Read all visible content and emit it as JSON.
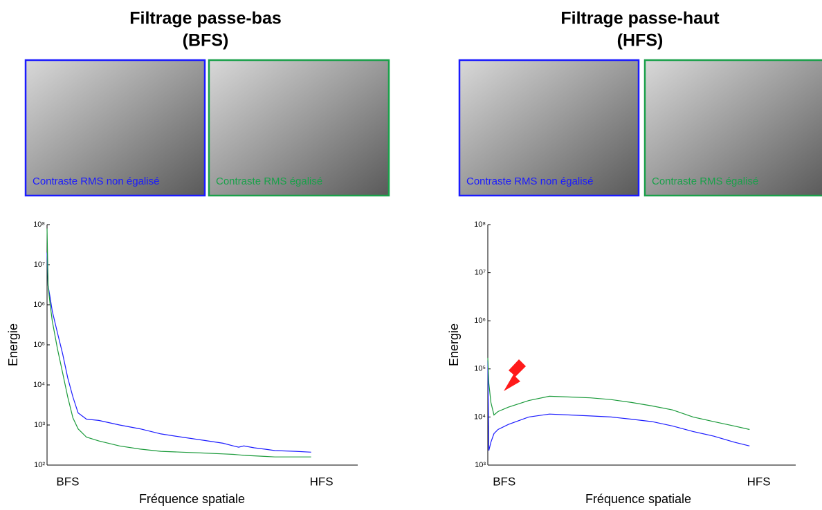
{
  "chart_data": [
    {
      "type": "line",
      "title": "Filtrage passe-bas",
      "subtitle": "(BFS)",
      "images": [
        {
          "caption": "Contraste RMS non égalisé",
          "color": "#1a1aff"
        },
        {
          "caption": "Contraste RMS égalisé",
          "color": "#1aa04a"
        }
      ],
      "xlabel": "Fréquence spatiale",
      "ylabel": "Energie",
      "xlim": [
        0,
        300
      ],
      "xticks": [
        {
          "value": 20,
          "label": "BFS"
        },
        {
          "value": 265,
          "label": "HFS"
        }
      ],
      "ylim": [
        100,
        100000000
      ],
      "log_y": true,
      "yticks": [
        {
          "value": 100,
          "label": "10²"
        },
        {
          "value": 1000,
          "label": "10³"
        },
        {
          "value": 10000,
          "label": "10⁴"
        },
        {
          "value": 100000,
          "label": "10⁵"
        },
        {
          "value": 1000000,
          "label": "10⁶"
        },
        {
          "value": 10000000,
          "label": "10⁷"
        },
        {
          "value": 100000000,
          "label": "10⁸"
        }
      ],
      "x": [
        0,
        1,
        3,
        5,
        10,
        15,
        20,
        25,
        30,
        38,
        50,
        70,
        90,
        110,
        130,
        150,
        170,
        180,
        185,
        190,
        200,
        210,
        220,
        240,
        255
      ],
      "series": [
        {
          "color": "#1a1aff",
          "values": [
            20000000,
            3000000,
            1500000,
            700000,
            200000,
            60000,
            15000,
            5000,
            2000,
            1400,
            1300,
            1000,
            800,
            600,
            500,
            420,
            350,
            300,
            280,
            300,
            270,
            250,
            230,
            220,
            210
          ]
        },
        {
          "color": "#1a9a3a",
          "values": [
            80000000,
            3000000,
            1000000,
            400000,
            80000,
            20000,
            5000,
            1500,
            800,
            500,
            400,
            300,
            250,
            220,
            210,
            200,
            190,
            185,
            180,
            175,
            170,
            165,
            160,
            160,
            160
          ]
        }
      ]
    },
    {
      "type": "line",
      "title": "Filtrage passe-haut",
      "subtitle": "(HFS)",
      "images": [
        {
          "caption": "Contraste RMS non égalisé",
          "color": "#1a1aff"
        },
        {
          "caption": "Contraste RMS égalisé",
          "color": "#1aa04a"
        }
      ],
      "xlabel": "Fréquence spatiale",
      "ylabel": "Energie",
      "xlim": [
        0,
        300
      ],
      "xticks": [
        {
          "value": 16,
          "label": "BFS"
        },
        {
          "value": 264,
          "label": "HFS"
        }
      ],
      "ylim": [
        1000,
        100000000
      ],
      "log_y": true,
      "yticks": [
        {
          "value": 1000,
          "label": "10³"
        },
        {
          "value": 10000,
          "label": "10⁴"
        },
        {
          "value": 100000,
          "label": "10⁵"
        },
        {
          "value": 1000000,
          "label": "10⁶"
        },
        {
          "value": 10000000,
          "label": "10⁷"
        },
        {
          "value": 100000000,
          "label": "10⁸"
        }
      ],
      "x": [
        0,
        1,
        3,
        6,
        10,
        20,
        40,
        60,
        80,
        100,
        120,
        140,
        160,
        180,
        200,
        220,
        240,
        255
      ],
      "series": [
        {
          "color": "#1a1aff",
          "values": [
            150000,
            2000,
            3000,
            4500,
            5500,
            7000,
            10000,
            11500,
            11000,
            10500,
            10000,
            9000,
            8000,
            6500,
            5000,
            4000,
            3000,
            2500
          ]
        },
        {
          "color": "#1a9a3a",
          "values": [
            170000,
            50000,
            20000,
            11000,
            13000,
            16000,
            22000,
            27000,
            26000,
            25000,
            23000,
            20000,
            17000,
            14000,
            10000,
            8000,
            6500,
            5500
          ]
        }
      ]
    }
  ]
}
